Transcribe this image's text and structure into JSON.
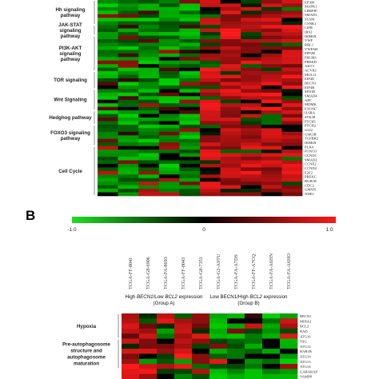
{
  "panel_b_label": "B",
  "chart_data": [
    {
      "type": "heatmap",
      "panel": "A (partial)",
      "pathways": [
        {
          "name": "Hh signaling pathway",
          "genes": 7
        },
        {
          "name": "JAK-STAT signaling pathway",
          "genes": 3
        },
        {
          "name": "PI3K-AKT signaling pathway",
          "genes": 10
        },
        {
          "name": "TOR signaling",
          "genes": 5
        },
        {
          "name": "Wnt Signaling",
          "genes": 6
        },
        {
          "name": "Hedghog pathway",
          "genes": 4
        },
        {
          "name": "FOXO3 signaling pathway",
          "genes": 6
        },
        {
          "name": "Cell Cycle",
          "genes": 14
        }
      ],
      "genes": [
        "EP300",
        "MAPK1",
        "LRRFIP",
        "SMAD3",
        "STAM",
        "CSNK1",
        "LIFR",
        "IRS2",
        "IKBKB",
        "VWF",
        "RBL1",
        "VWFAB",
        "PPP2R",
        "PIK3R1",
        "PREKD",
        "AKT3",
        "ACVR1",
        "MOL11",
        "EIF4E",
        "BECN1",
        "EIF4B",
        "MTOR",
        "SMAD4",
        "APC",
        "MDMK",
        "EXOSC",
        "IL6RA",
        "STK38",
        "PTCH1",
        "PTCH2",
        "GLI2",
        "GSK3B",
        "TGFBR2",
        "IKBKB",
        "PLK4",
        "FOXO3",
        "CCND1",
        "SMAD2",
        "CCNE2",
        "CCND2",
        "E2F2",
        "PREKC",
        "BUB1B",
        "CDC2",
        "GMNN",
        "NDE1"
      ],
      "group_a_samples": 5,
      "group_b_samples": 5,
      "color_scale": {
        "low": "#00c800",
        "mid": "#000000",
        "high": "#ff1a1a"
      }
    },
    {
      "type": "heatmap",
      "panel": "B",
      "colorbar": {
        "min_label": "-1.0",
        "mid_label": "0",
        "max_label": "1.0",
        "min": -1.0,
        "max": 1.0
      },
      "samples": [
        "TCGA-FF-8041",
        "TCGA-G8-6906",
        "TCGA-FA-8693",
        "TCGA-FF-8043",
        "TCGA-G8-7351",
        "TCGA-G2-A9TU",
        "TCGA-FA-A7DS",
        "TCGA-FF-A7CQ",
        "TCGA-FA-A6HN",
        "TCGA-FA-A6HO"
      ],
      "group_a": {
        "line1": "High ",
        "gene1": "BECN1",
        "mid": "/Low ",
        "gene2": "BCL2",
        "tail": " expression",
        "line2": "(Group A)"
      },
      "group_b": {
        "line1": "Low BECN1/High ",
        "gene2": "BCL2",
        "tail": " expression",
        "line2": "(Group B)"
      },
      "pathways": [
        {
          "name": "Hypoxia",
          "genes": 5
        },
        {
          "name": "Pre-autophagosome structure and autophagosome maturation",
          "genes": 6
        }
      ],
      "genes": [
        "BECN1",
        "MINA1",
        "BCL2",
        "BAD",
        "ATG16",
        "TSG",
        "ATG12",
        "RAB1B",
        "ATG10",
        "ATG13",
        "ATG14",
        "GABARAP",
        "VAMP8"
      ]
    }
  ]
}
